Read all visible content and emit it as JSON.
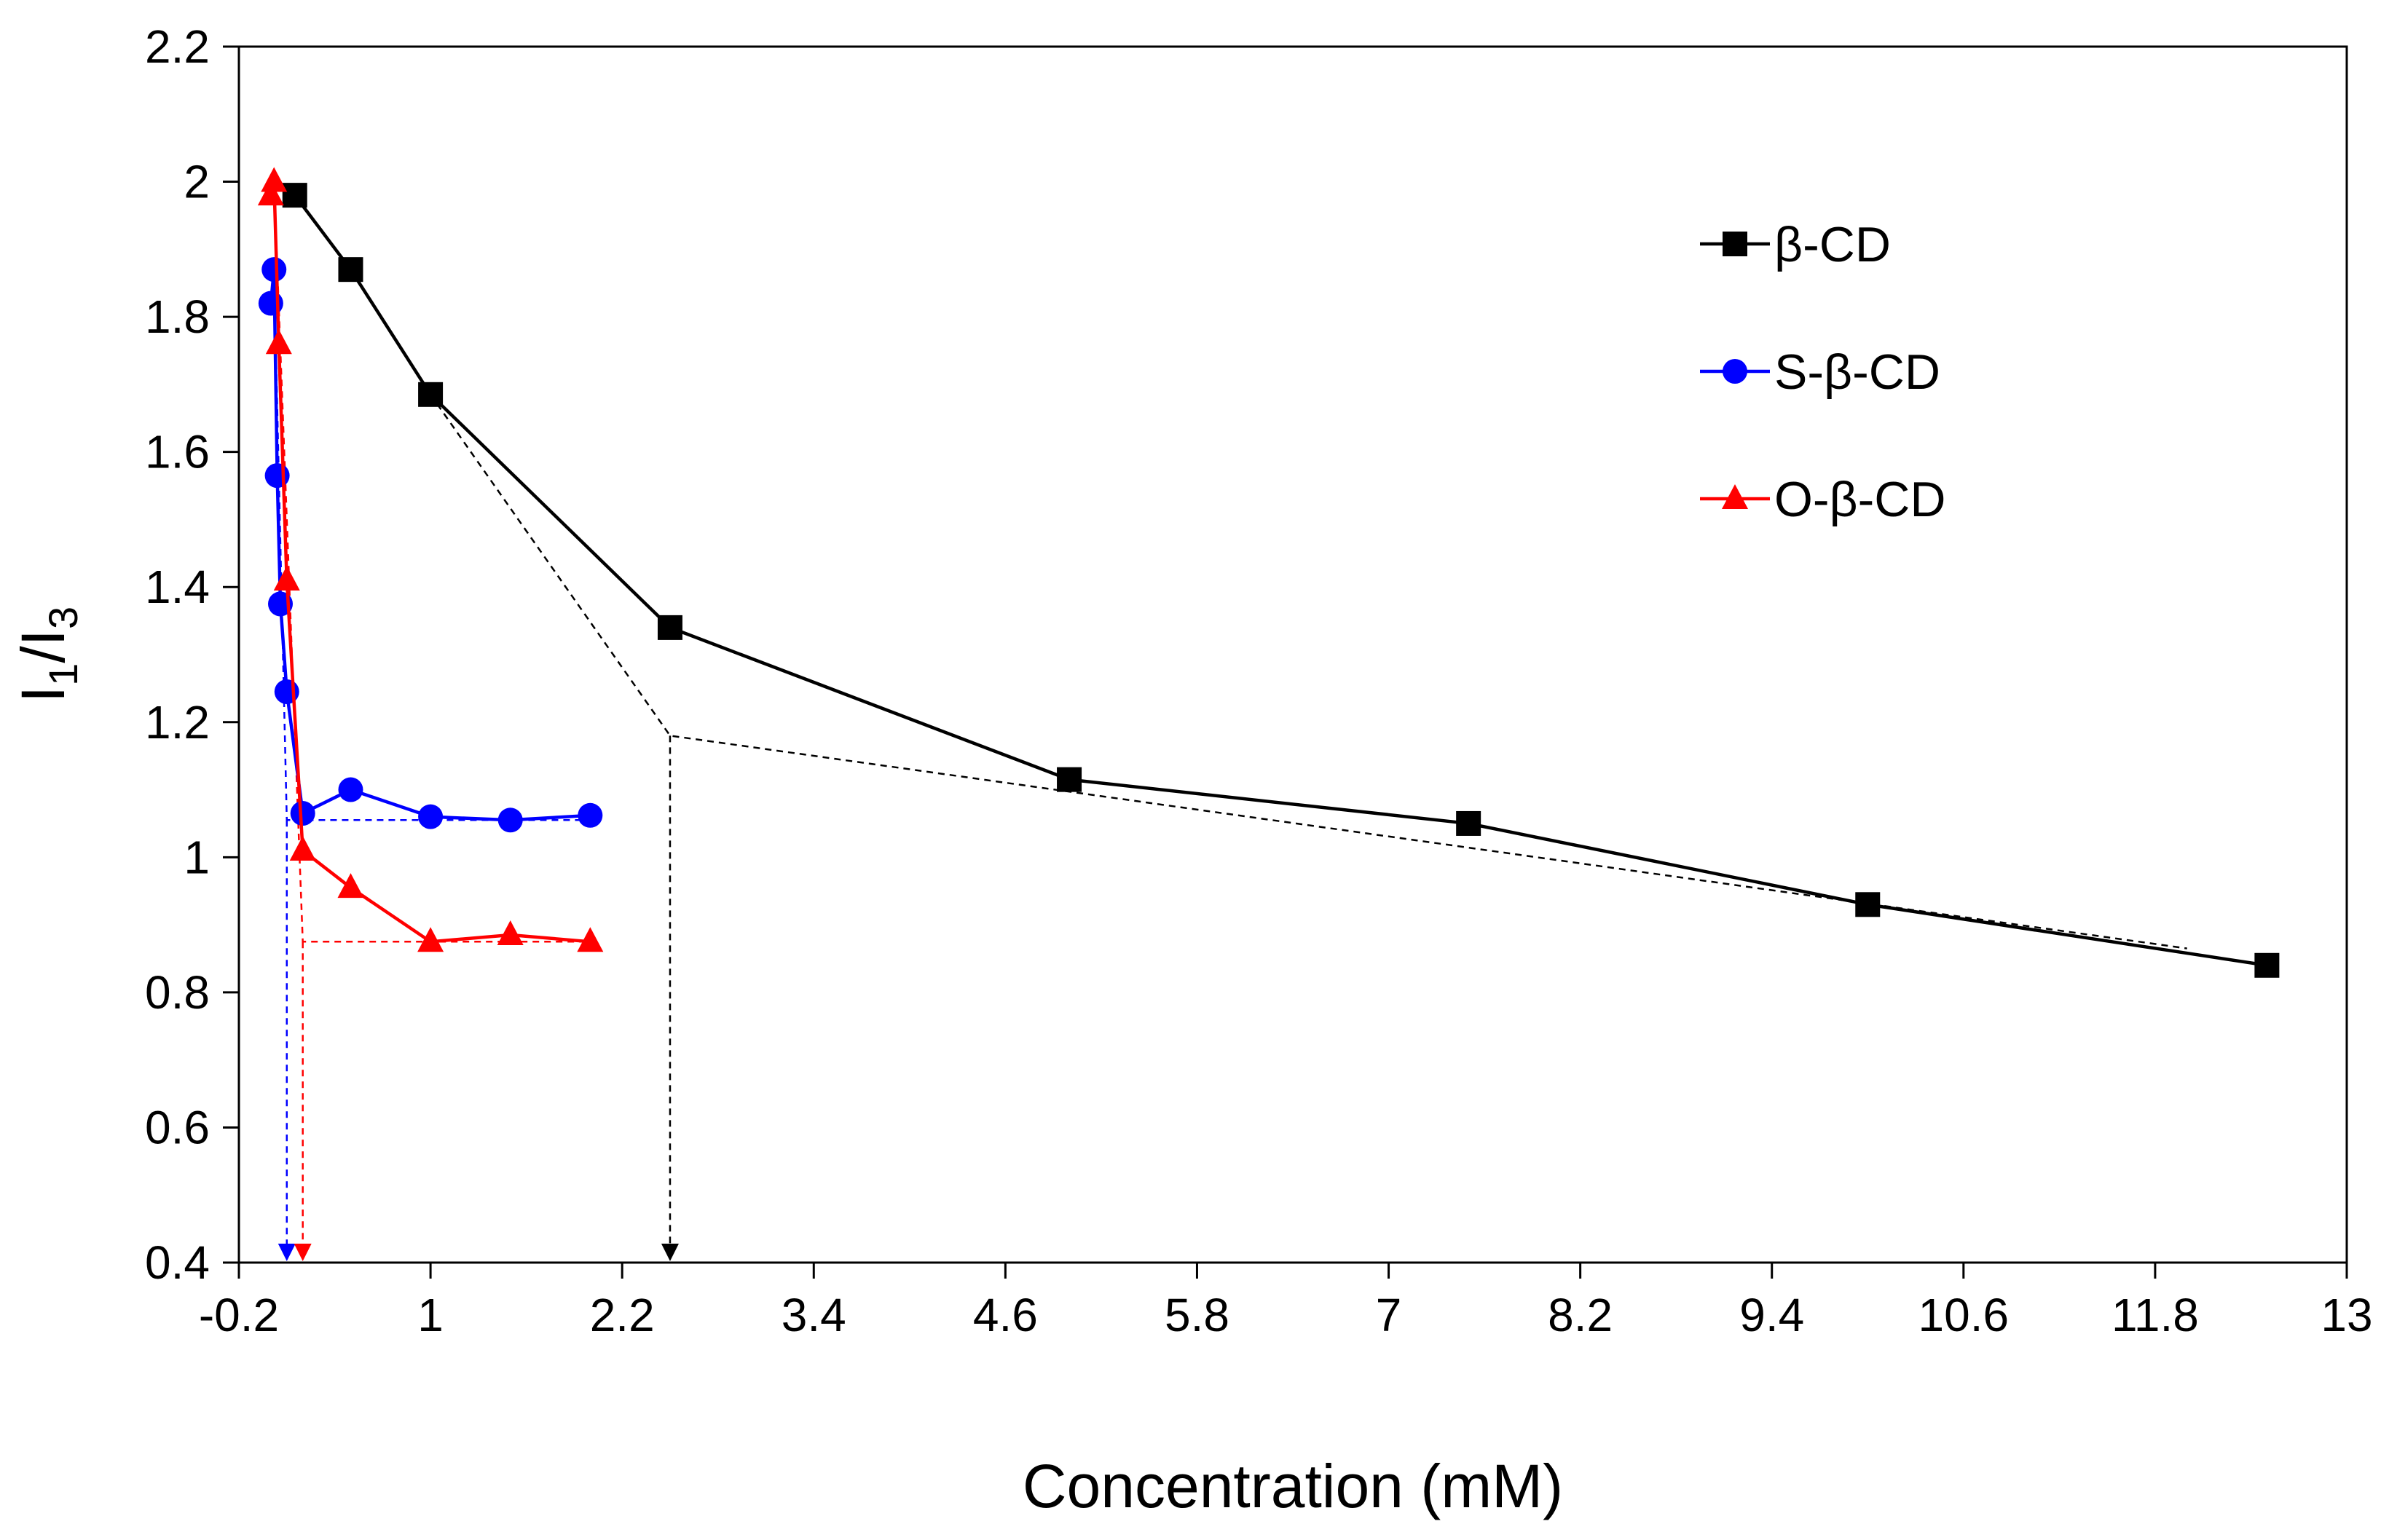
{
  "chart_data": {
    "type": "line",
    "xlabel": "Concentration (mM)",
    "ylabel": {
      "base": "I",
      "sub1": "1",
      "slash": "/",
      "base2": "I",
      "sub2": "3"
    },
    "xlim": [
      -0.2,
      13
    ],
    "ylim": [
      0.4,
      2.2
    ],
    "x_ticks": [
      -0.2,
      1,
      2.2,
      3.4,
      4.6,
      5.8,
      7,
      8.2,
      9.4,
      10.6,
      11.8,
      13
    ],
    "x_tick_labels": [
      "-0.2",
      "1",
      "2.2",
      "3.4",
      "4.6",
      "5.8",
      "7",
      "8.2",
      "9.4",
      "10.6",
      "11.8",
      "13"
    ],
    "y_ticks": [
      0.4,
      0.6,
      0.8,
      1,
      1.2,
      1.4,
      1.6,
      1.8,
      2,
      2.2
    ],
    "y_tick_labels": [
      "0.4",
      "0.6",
      "0.8",
      "1",
      "1.2",
      "1.4",
      "1.6",
      "1.8",
      "2",
      "2.2"
    ],
    "grid": false,
    "legend_position": "top-right",
    "series": [
      {
        "name": "β-CD",
        "color": "#000000",
        "marker": "square",
        "x": [
          0.15,
          0.5,
          1.0,
          2.5,
          5.0,
          7.5,
          10.0,
          12.5
        ],
        "y": [
          1.98,
          1.87,
          1.685,
          1.34,
          1.115,
          1.05,
          0.93,
          0.84
        ]
      },
      {
        "name": "S-β-CD",
        "color": "#0000ff",
        "marker": "circle",
        "x": [
          0.0,
          0.02,
          0.04,
          0.06,
          0.1,
          0.2,
          0.5,
          1.0,
          1.5,
          2.0
        ],
        "y": [
          1.82,
          1.87,
          1.565,
          1.375,
          1.245,
          1.065,
          1.1,
          1.06,
          1.055,
          1.062
        ]
      },
      {
        "name": "O-β-CD",
        "color": "#ff0000",
        "marker": "triangle",
        "x": [
          0.0,
          0.02,
          0.05,
          0.1,
          0.2,
          0.5,
          1.0,
          1.5,
          2.0
        ],
        "y": [
          1.98,
          2.0,
          1.76,
          1.41,
          1.01,
          0.955,
          0.875,
          0.885,
          0.875
        ]
      }
    ],
    "annotations": {
      "guide_lines": [
        {
          "color": "#000000",
          "points": [
            [
              1.0,
              1.685
            ],
            [
              2.5,
              1.18
            ],
            [
              12.0,
              0.865
            ]
          ],
          "arrow": [
            [
              2.5,
              1.18
            ],
            [
              2.5,
              0.4
            ]
          ]
        },
        {
          "color": "#0000ff",
          "points": [
            [
              0.02,
              1.87
            ],
            [
              0.1,
              1.055
            ],
            [
              2.0,
              1.055
            ]
          ],
          "arrow": [
            [
              0.1,
              1.055
            ],
            [
              0.1,
              0.4
            ]
          ]
        },
        {
          "color": "#ff0000",
          "points": [
            [
              0.02,
              2.0
            ],
            [
              0.2,
              0.875
            ],
            [
              2.0,
              0.875
            ]
          ],
          "arrow": [
            [
              0.2,
              0.875
            ],
            [
              0.2,
              0.4
            ]
          ]
        }
      ]
    }
  }
}
